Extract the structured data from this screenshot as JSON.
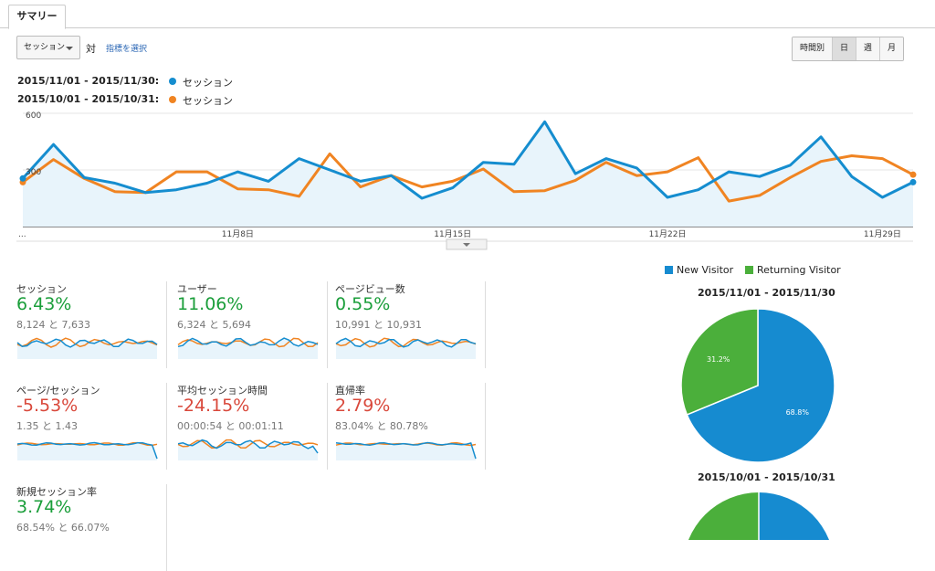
{
  "tab": {
    "label": "サマリー"
  },
  "controls": {
    "metric_select": "セッション",
    "vs_label": "対",
    "select_metric_link": "指標を選択",
    "granularity": [
      {
        "label": "時間別",
        "active": false
      },
      {
        "label": "日",
        "active": true
      },
      {
        "label": "週",
        "active": false
      },
      {
        "label": "月",
        "active": false
      }
    ]
  },
  "legend": [
    {
      "range": "2015/11/01 - 2015/11/30:",
      "metric": "セッション",
      "color": "#158dcf"
    },
    {
      "range": "2015/10/01 - 2015/10/31:",
      "metric": "セッション",
      "color": "#f08422"
    }
  ],
  "colors": {
    "current": "#158dcf",
    "previous": "#f08422",
    "new_visitor": "#168bd0",
    "returning_visitor": "#4baf3b",
    "positive": "#1a9e3a",
    "negative": "#d9483b"
  },
  "chart_data": [
    {
      "type": "line",
      "y_ticks": [
        "600",
        "300"
      ],
      "ylim": [
        0,
        600
      ],
      "x_ticks": [
        "...",
        "11月8日",
        "11月15日",
        "11月22日",
        "11月29日"
      ],
      "series": [
        {
          "name": "2015/11/01 - 2015/11/30: セッション",
          "values": [
            255,
            435,
            260,
            230,
            180,
            195,
            230,
            290,
            240,
            360,
            300,
            240,
            270,
            150,
            205,
            340,
            330,
            555,
            280,
            360,
            310,
            155,
            195,
            290,
            265,
            325,
            475,
            265,
            155,
            235
          ]
        },
        {
          "name": "2015/10/01 - 2015/10/31: セッション",
          "values": [
            235,
            355,
            255,
            185,
            180,
            290,
            290,
            200,
            195,
            160,
            385,
            210,
            270,
            210,
            240,
            305,
            185,
            190,
            245,
            340,
            270,
            290,
            365,
            135,
            165,
            260,
            345,
            375,
            360,
            275
          ]
        }
      ]
    },
    {
      "type": "pie",
      "title": "2015/11/01 - 2015/11/30",
      "labels": [
        "New Visitor",
        "Returning Visitor"
      ],
      "values": [
        68.8,
        31.2
      ],
      "value_labels": [
        "68.8%",
        "31.2%"
      ]
    },
    {
      "type": "pie",
      "title": "2015/10/01 - 2015/10/31",
      "labels": [
        "New Visitor",
        "Returning Visitor"
      ]
    }
  ],
  "scorecards": [
    {
      "label": "セッション",
      "value": "6.43%",
      "compare": "8,124 と 7,633",
      "sentiment": "pos"
    },
    {
      "label": "ユーザー",
      "value": "11.06%",
      "compare": "6,324 と 5,694",
      "sentiment": "pos"
    },
    {
      "label": "ページビュー数",
      "value": "0.55%",
      "compare": "10,991 と 10,931",
      "sentiment": "pos"
    },
    {
      "label": "ページ/セッション",
      "value": "-5.53%",
      "compare": "1.35 と 1.43",
      "sentiment": "neg"
    },
    {
      "label": "平均セッション時間",
      "value": "-24.15%",
      "compare": "00:00:54 と 00:01:11",
      "sentiment": "neg"
    },
    {
      "label": "直帰率",
      "value": "2.79%",
      "compare": "83.04% と 80.78%",
      "sentiment": "neg"
    },
    {
      "label": "新規セッション率",
      "value": "3.74%",
      "compare": "68.54% と 66.07%",
      "sentiment": "pos"
    }
  ],
  "pie_legend": [
    {
      "label": "New Visitor",
      "color": "#168bd0"
    },
    {
      "label": "Returning Visitor",
      "color": "#4baf3b"
    }
  ]
}
